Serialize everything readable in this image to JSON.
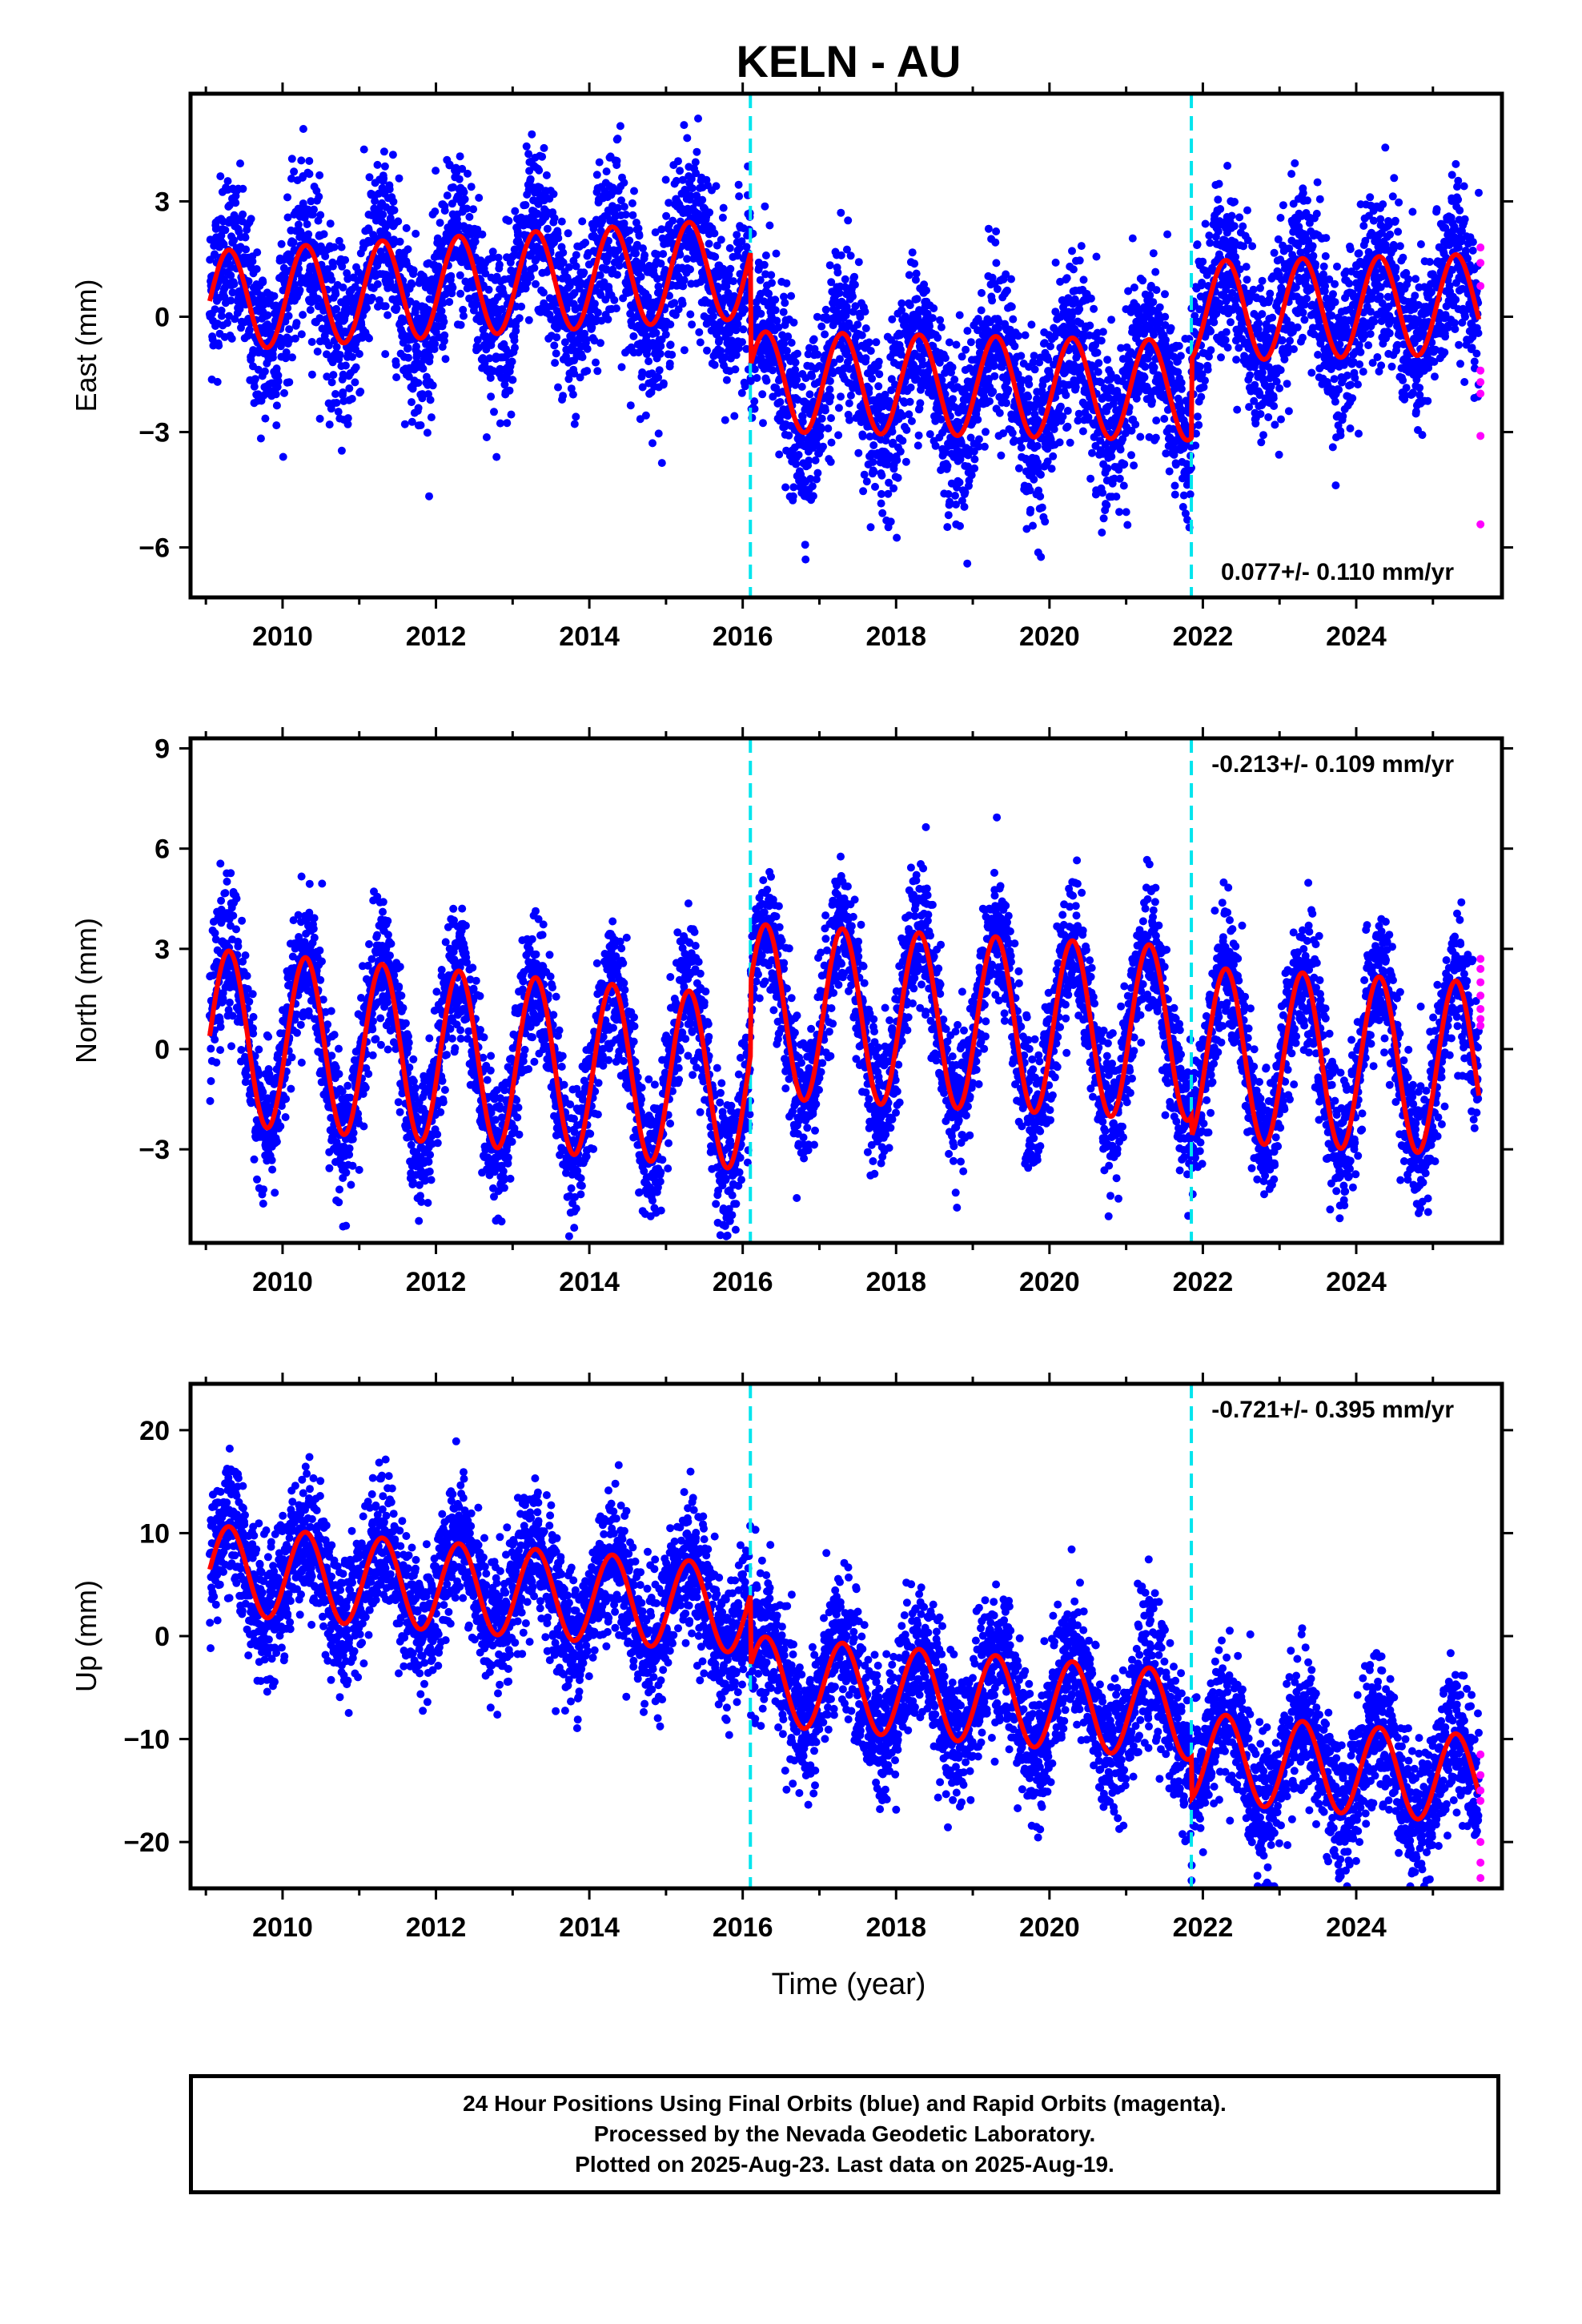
{
  "title": "KELN - AU",
  "xlabel": "Time (year)",
  "footer": {
    "line1": "24 Hour Positions Using Final Orbits (blue) and Rapid Orbits (magenta).",
    "line2": "Processed by the Nevada Geodetic Laboratory.",
    "line3": "Plotted on 2025-Aug-23. Last data on 2025-Aug-19."
  },
  "colors": {
    "final": "#0000ff",
    "rapid": "#ff00ff",
    "model": "#ff0000",
    "offset": "#00e5ee"
  },
  "chart_data": [
    {
      "type": "scatter",
      "component": "east",
      "ylabel": "East (mm)",
      "xlim": [
        2008.8,
        2025.9
      ],
      "ylim": [
        -7.3,
        5.8
      ],
      "x_ticks": [
        2010,
        2012,
        2014,
        2016,
        2018,
        2020,
        2022,
        2024
      ],
      "y_ticks": [
        -6,
        -3,
        0,
        3
      ],
      "offsets": [
        2016.1,
        2021.85
      ],
      "rate_text": "0.077+/- 0.110 mm/yr",
      "rate_pos": "bottom-right",
      "model": {
        "segments": [
          {
            "x0": 2009.05,
            "x1": 2016.1,
            "a": 0.4,
            "b": 0.12,
            "amp": 1.3,
            "phase": 0.0
          },
          {
            "x0": 2016.1,
            "x1": 2021.85,
            "a": -1.4,
            "b": -0.04,
            "amp": 1.3,
            "phase": 0.0
          },
          {
            "x0": 2021.85,
            "x1": 2025.6,
            "a": -0.5,
            "b": 0.05,
            "amp": 1.3,
            "phase": 0.0
          }
        ],
        "noise": 1.1
      },
      "rapid": [
        1.8,
        1.4,
        0.8,
        -1.4,
        -1.7,
        -2.0,
        -3.1,
        -5.4
      ]
    },
    {
      "type": "scatter",
      "component": "north",
      "ylabel": "North (mm)",
      "xlim": [
        2008.8,
        2025.9
      ],
      "ylim": [
        -5.8,
        9.3
      ],
      "x_ticks": [
        2010,
        2012,
        2014,
        2016,
        2018,
        2020,
        2022,
        2024
      ],
      "y_ticks": [
        -3,
        0,
        3,
        6,
        9
      ],
      "offsets": [
        2016.1,
        2021.85
      ],
      "rate_text": "-0.213+/- 0.109 mm/yr",
      "rate_pos": "top-right",
      "model": {
        "segments": [
          {
            "x0": 2009.05,
            "x1": 2016.1,
            "a": 0.4,
            "b": -0.2,
            "amp": 2.6,
            "phase": 0.0
          },
          {
            "x0": 2016.1,
            "x1": 2021.85,
            "a": 2.0,
            "b": -0.12,
            "amp": 2.6,
            "phase": 0.0
          },
          {
            "x0": 2021.85,
            "x1": 2025.6,
            "a": 1.4,
            "b": -0.12,
            "amp": 2.6,
            "phase": 0.0
          }
        ],
        "noise": 1.0
      },
      "rapid": [
        2.7,
        2.4,
        2.0,
        1.6,
        1.2,
        0.9,
        0.7
      ]
    },
    {
      "type": "scatter",
      "component": "up",
      "ylabel": "Up (mm)",
      "xlim": [
        2008.8,
        2025.9
      ],
      "ylim": [
        -24.5,
        24.5
      ],
      "x_ticks": [
        2010,
        2012,
        2014,
        2016,
        2018,
        2020,
        2022,
        2024
      ],
      "y_ticks": [
        -20,
        -10,
        0,
        10,
        20
      ],
      "offsets": [
        2016.1,
        2021.85
      ],
      "rate_text": "-0.721+/- 0.395 mm/yr",
      "rate_pos": "top-right",
      "model": {
        "segments": [
          {
            "x0": 2009.05,
            "x1": 2016.1,
            "a": 6.5,
            "b": -0.55,
            "amp": 4.3,
            "phase": 0.0
          },
          {
            "x0": 2016.1,
            "x1": 2021.85,
            "a": 0.0,
            "b": -0.6,
            "amp": 4.3,
            "phase": 0.0
          },
          {
            "x0": 2021.85,
            "x1": 2025.6,
            "a": -4.0,
            "b": -0.6,
            "amp": 4.3,
            "phase": 0.0
          }
        ],
        "noise": 3.3
      },
      "rapid": [
        -11.5,
        -13.5,
        -15.0,
        -16.0,
        -20.0,
        -22.0,
        -23.5
      ]
    }
  ]
}
